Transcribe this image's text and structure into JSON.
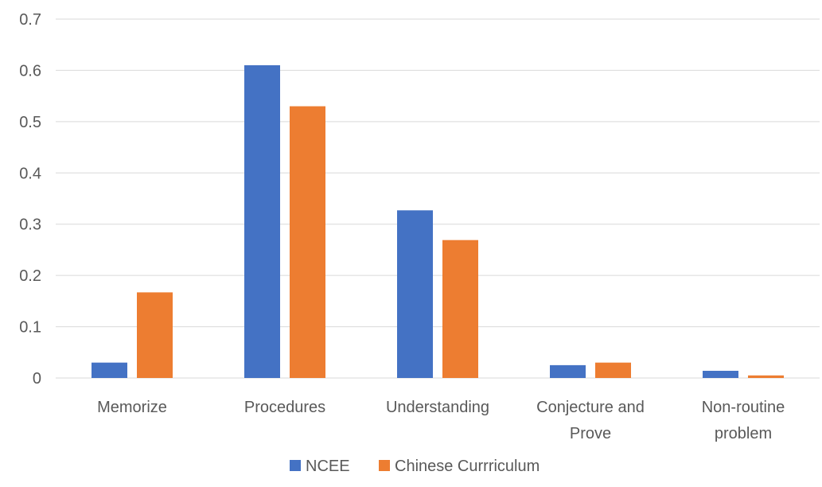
{
  "chart_data": {
    "type": "bar",
    "categories": [
      [
        "Memorize"
      ],
      [
        "Procedures"
      ],
      [
        "Understanding"
      ],
      [
        "Conjecture and",
        "Prove"
      ],
      [
        "Non-routine",
        "problem"
      ]
    ],
    "series": [
      {
        "name": "NCEE",
        "values": [
          0.03,
          0.61,
          0.327,
          0.025,
          0.014
        ],
        "color": "#4472C4"
      },
      {
        "name": "Chinese Currriculum",
        "values": [
          0.167,
          0.53,
          0.269,
          0.03,
          0.005
        ],
        "color": "#ED7D31"
      }
    ],
    "ylim": [
      0,
      0.7
    ],
    "yticks": [
      "0",
      "0.1",
      "0.2",
      "0.3",
      "0.4",
      "0.5",
      "0.6",
      "0.7"
    ],
    "ytick_values": [
      0,
      0.1,
      0.2,
      0.3,
      0.4,
      0.5,
      0.6,
      0.7
    ],
    "grid": true,
    "legend_position": "bottom"
  }
}
